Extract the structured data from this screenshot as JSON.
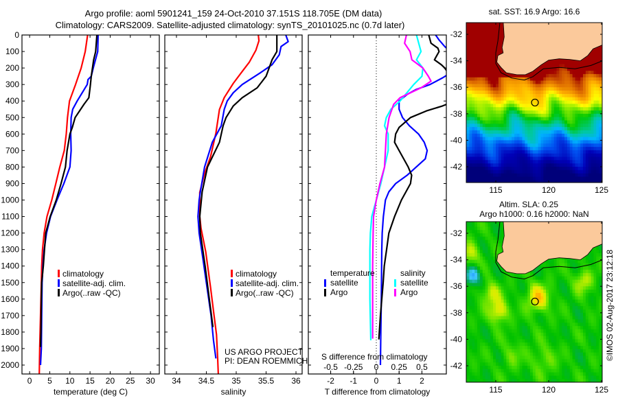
{
  "title": {
    "line1": "Argo profile: aoml 5901241_159 24-Oct-2010 37.151S 118.705E (DM data)",
    "line2": "Climatology: CARS2009. Satellite-adjusted climatology: synTS_20101025.nc (0.7d later)"
  },
  "chart_data": [
    {
      "type": "line",
      "id": "temperature",
      "xlabel": "temperature (deg C)",
      "ylabel": "depth",
      "xlim": [
        -1.9,
        32.2
      ],
      "ylim": [
        2054,
        0
      ],
      "xticks": [
        "0",
        "5",
        "10",
        "15",
        "20",
        "25",
        "30"
      ],
      "yticks": [
        "0",
        "100",
        "200",
        "300",
        "400",
        "500",
        "600",
        "700",
        "800",
        "900",
        "1000",
        "1100",
        "1200",
        "1300",
        "1400",
        "1500",
        "1600",
        "1700",
        "1800",
        "1900",
        "2000"
      ],
      "legend": [
        "climatology",
        "satellite-adj. clim.",
        "Argo(..raw -QC)"
      ],
      "series": [
        {
          "name": "climatology",
          "color": "#ff0000",
          "points": [
            [
              0,
              14.4
            ],
            [
              100,
              13.8
            ],
            [
              200,
              12.8
            ],
            [
              300,
              11.4
            ],
            [
              400,
              9.9
            ],
            [
              500,
              9.4
            ],
            [
              600,
              9.1
            ],
            [
              700,
              8.6
            ],
            [
              800,
              7.5
            ],
            [
              900,
              6.5
            ],
            [
              1000,
              5.5
            ],
            [
              1100,
              4.3
            ],
            [
              1200,
              3.6
            ],
            [
              1300,
              3.2
            ],
            [
              1400,
              3.0
            ],
            [
              1500,
              2.9
            ],
            [
              1700,
              2.7
            ],
            [
              1900,
              2.5
            ],
            [
              2054,
              2.4
            ]
          ]
        },
        {
          "name": "satellite-adj. clim.",
          "color": "#0000ff",
          "points": [
            [
              0,
              17.0
            ],
            [
              100,
              16.9
            ],
            [
              200,
              15.8
            ],
            [
              250,
              15.3
            ],
            [
              270,
              14.5
            ],
            [
              300,
              14.3
            ],
            [
              400,
              11.8
            ],
            [
              450,
              10.7
            ],
            [
              500,
              10.3
            ],
            [
              600,
              10.2
            ],
            [
              700,
              10.3
            ],
            [
              800,
              10.0
            ],
            [
              900,
              8.5
            ],
            [
              1000,
              6.8
            ],
            [
              1100,
              5.2
            ],
            [
              1200,
              4.2
            ],
            [
              1300,
              3.6
            ],
            [
              1400,
              3.3
            ],
            [
              1500,
              3.1
            ],
            [
              1700,
              3.0
            ],
            [
              1900,
              2.9
            ],
            [
              2000,
              2.7
            ]
          ]
        },
        {
          "name": "Argo(..raw -QC)",
          "color": "#000000",
          "points": [
            [
              0,
              16.7
            ],
            [
              100,
              16.4
            ],
            [
              150,
              15.9
            ],
            [
              250,
              15.3
            ],
            [
              300,
              15.1
            ],
            [
              380,
              14.7
            ],
            [
              420,
              13.5
            ],
            [
              460,
              12.4
            ],
            [
              500,
              11.3
            ],
            [
              560,
              10.6
            ],
            [
              600,
              10.0
            ],
            [
              700,
              9.3
            ],
            [
              800,
              8.9
            ],
            [
              900,
              7.8
            ],
            [
              1000,
              6.6
            ],
            [
              1100,
              5.1
            ],
            [
              1200,
              4.0
            ],
            [
              1300,
              3.7
            ],
            [
              1400,
              3.4
            ],
            [
              1500,
              3.0
            ],
            [
              1600,
              2.9
            ],
            [
              1800,
              2.8
            ],
            [
              1890,
              2.7
            ]
          ]
        }
      ]
    },
    {
      "type": "line",
      "id": "salinity",
      "xlabel": "salinity",
      "ylabel": "depth",
      "xlim": [
        33.805,
        36.103
      ],
      "ylim": [
        2054,
        0
      ],
      "xticks": [
        "34",
        "34.5",
        "35",
        "35.5",
        "36"
      ],
      "legend": [
        "climatology",
        "satellite-adj. clim.",
        "Argo(..raw -QC)"
      ],
      "series": [
        {
          "name": "climatology",
          "color": "#ff0000",
          "points": [
            [
              0,
              35.37
            ],
            [
              35,
              35.38
            ],
            [
              92,
              35.33
            ],
            [
              164,
              35.22
            ],
            [
              221,
              35.1
            ],
            [
              293,
              34.95
            ],
            [
              379,
              34.8
            ],
            [
              451,
              34.72
            ],
            [
              595,
              34.66
            ],
            [
              738,
              34.57
            ],
            [
              839,
              34.47
            ],
            [
              954,
              34.39
            ],
            [
              1098,
              34.39
            ],
            [
              1170,
              34.41
            ],
            [
              1313,
              34.49
            ],
            [
              1529,
              34.57
            ],
            [
              1672,
              34.62
            ],
            [
              1816,
              34.67
            ],
            [
              1960,
              34.69
            ],
            [
              2054,
              34.7
            ]
          ]
        },
        {
          "name": "satellite-adj. clim.",
          "color": "#0000ff",
          "points": [
            [
              0,
              35.83
            ],
            [
              40,
              35.87
            ],
            [
              70,
              35.75
            ],
            [
              120,
              35.72
            ],
            [
              180,
              35.6
            ],
            [
              230,
              35.4
            ],
            [
              300,
              35.1
            ],
            [
              350,
              34.95
            ],
            [
              400,
              34.85
            ],
            [
              450,
              34.8
            ],
            [
              550,
              34.75
            ],
            [
              650,
              34.6
            ],
            [
              800,
              34.47
            ],
            [
              950,
              34.4
            ],
            [
              1000,
              34.38
            ],
            [
              1100,
              34.36
            ],
            [
              1200,
              34.38
            ],
            [
              1350,
              34.44
            ],
            [
              1500,
              34.5
            ],
            [
              1700,
              34.58
            ],
            [
              1850,
              34.62
            ],
            [
              1960,
              34.66
            ]
          ]
        },
        {
          "name": "Argo(..raw -QC)",
          "color": "#000000",
          "points": [
            [
              0,
              35.68
            ],
            [
              100,
              35.68
            ],
            [
              150,
              35.6
            ],
            [
              200,
              35.55
            ],
            [
              250,
              35.5
            ],
            [
              320,
              35.35
            ],
            [
              380,
              35.1
            ],
            [
              430,
              34.95
            ],
            [
              500,
              34.83
            ],
            [
              550,
              34.78
            ],
            [
              650,
              34.72
            ],
            [
              800,
              34.52
            ],
            [
              950,
              34.43
            ],
            [
              1100,
              34.39
            ],
            [
              1200,
              34.4
            ],
            [
              1400,
              34.48
            ],
            [
              1600,
              34.55
            ],
            [
              1770,
              34.61
            ]
          ]
        }
      ]
    },
    {
      "type": "line",
      "id": "difference",
      "xlabel": "T difference from climatology",
      "x2label": "S difference from climatology",
      "xlim": [
        -2.98,
        3.07
      ],
      "x2lim": [
        -0.745,
        0.7675
      ],
      "ylim": [
        2054,
        0
      ],
      "xticks": [
        "-2",
        "-1",
        "0",
        "1",
        "2"
      ],
      "x2ticks": [
        "-0.5",
        "-0.25",
        "0",
        "0.25",
        "0.5"
      ],
      "legend": {
        "temperature": "temperature",
        "salinity": "salinity",
        "t_satellite": "satellite",
        "t_argo": "Argo",
        "s_satellite": "satellite",
        "s_argo": "Argo"
      },
      "series": [
        {
          "name": "T satellite",
          "axis": "T",
          "color": "#0000ff",
          "points": [
            [
              0,
              2.6
            ],
            [
              30,
              2.75
            ],
            [
              70,
              3.0
            ],
            [
              120,
              3.4
            ],
            [
              200,
              3.6
            ],
            [
              260,
              2.9
            ],
            [
              300,
              2.35
            ],
            [
              330,
              1.75
            ],
            [
              360,
              1.35
            ],
            [
              400,
              1.0
            ],
            [
              450,
              1.0
            ],
            [
              500,
              1.15
            ],
            [
              550,
              1.45
            ],
            [
              600,
              1.85
            ],
            [
              650,
              2.1
            ],
            [
              700,
              2.23
            ],
            [
              750,
              2.15
            ],
            [
              800,
              1.75
            ],
            [
              850,
              1.35
            ],
            [
              900,
              0.85
            ],
            [
              950,
              0.55
            ],
            [
              1000,
              0.4
            ],
            [
              1100,
              0.31
            ],
            [
              1200,
              0.26
            ],
            [
              1300,
              0.24
            ],
            [
              1600,
              0.22
            ],
            [
              1800,
              0.2
            ],
            [
              2000,
              0.18
            ]
          ]
        },
        {
          "name": "T Argo",
          "axis": "T",
          "color": "#000000",
          "points": [
            [
              0,
              2.3
            ],
            [
              50,
              2.4
            ],
            [
              80,
              2.7
            ],
            [
              100,
              2.75
            ],
            [
              150,
              2.55
            ],
            [
              180,
              2.85
            ],
            [
              200,
              3.0
            ],
            [
              300,
              3.5
            ],
            [
              380,
              3.8
            ],
            [
              430,
              2.9
            ],
            [
              460,
              2.2
            ],
            [
              500,
              1.5
            ],
            [
              560,
              1.0
            ],
            [
              600,
              0.85
            ],
            [
              650,
              0.8
            ],
            [
              700,
              1.0
            ],
            [
              800,
              1.4
            ],
            [
              850,
              1.55
            ],
            [
              900,
              1.5
            ],
            [
              950,
              1.3
            ],
            [
              1000,
              1.1
            ],
            [
              1100,
              0.8
            ],
            [
              1200,
              0.55
            ],
            [
              1300,
              0.45
            ],
            [
              1400,
              0.35
            ],
            [
              1500,
              0.3
            ],
            [
              1700,
              0.18
            ],
            [
              1845,
              0.11
            ]
          ]
        },
        {
          "name": "S satellite",
          "axis": "S",
          "color": "#00ffff",
          "points": [
            [
              0,
              0.44
            ],
            [
              100,
              0.49
            ],
            [
              150,
              0.44
            ],
            [
              200,
              0.51
            ],
            [
              250,
              0.5
            ],
            [
              300,
              0.41
            ],
            [
              400,
              0.26
            ],
            [
              450,
              0.16
            ],
            [
              500,
              0.11
            ],
            [
              550,
              0.09
            ],
            [
              600,
              0.13
            ],
            [
              700,
              0.13
            ],
            [
              800,
              0.09
            ],
            [
              900,
              0.05
            ],
            [
              1000,
              0.0
            ],
            [
              1100,
              -0.05
            ],
            [
              1200,
              -0.065
            ],
            [
              1300,
              -0.07
            ],
            [
              1600,
              -0.07
            ],
            [
              1850,
              -0.06
            ]
          ]
        },
        {
          "name": "S Argo",
          "axis": "S",
          "color": "#ff00ff",
          "points": [
            [
              0,
              0.33
            ],
            [
              50,
              0.31
            ],
            [
              100,
              0.37
            ],
            [
              150,
              0.39
            ],
            [
              200,
              0.51
            ],
            [
              250,
              0.57
            ],
            [
              280,
              0.6
            ],
            [
              320,
              0.49
            ],
            [
              380,
              0.26
            ],
            [
              420,
              0.19
            ],
            [
              500,
              0.14
            ],
            [
              600,
              0.11
            ],
            [
              700,
              0.1
            ],
            [
              800,
              0.09
            ],
            [
              900,
              0.04
            ],
            [
              1000,
              0.0
            ],
            [
              1100,
              -0.03
            ],
            [
              1200,
              -0.035
            ],
            [
              1400,
              -0.04
            ],
            [
              1600,
              -0.04
            ],
            [
              1840,
              -0.04
            ]
          ]
        }
      ]
    }
  ],
  "credits": {
    "project": "US ARGO PROJECT",
    "pi": "PI: DEAN ROEMMICH",
    "imos": "©IMOS 02-Aug-2017 23:12:18"
  },
  "maps": [
    {
      "id": "sst",
      "title1": "sat. SST: 16.9 Argo: 16.6",
      "lat_ticks": [
        "-32",
        "-34",
        "-36",
        "-38",
        "-40",
        "-42"
      ],
      "lon_ticks": [
        "115",
        "120",
        "125"
      ],
      "argo_position": {
        "lat": -37.151,
        "lon": 118.705
      }
    },
    {
      "id": "sla",
      "title1": "Altim. SLA: 0.25",
      "title2": "Argo h1000: 0.16 h2000: NaN",
      "lat_ticks": [
        "-32",
        "-34",
        "-36",
        "-38",
        "-40",
        "-42"
      ],
      "lon_ticks": [
        "115",
        "120",
        "125"
      ],
      "argo_position": {
        "lat": -37.151,
        "lon": 118.705
      }
    }
  ],
  "colors": {
    "land": "#fbc99b",
    "climatology": "#ff0000",
    "satellite": "#0000ff",
    "argo": "#000000",
    "s_satellite": "#00ffff",
    "s_argo": "#ff00ff"
  }
}
